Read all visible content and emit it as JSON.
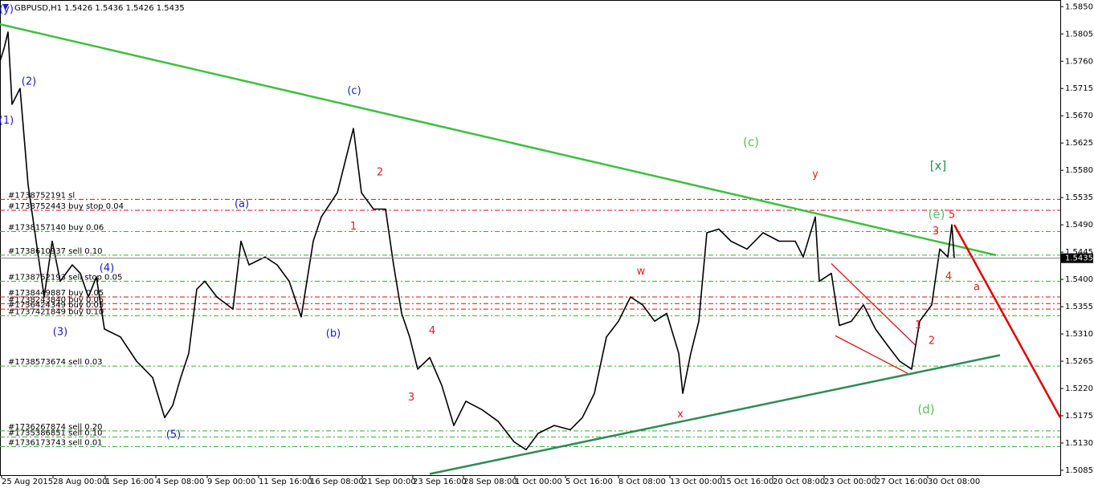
{
  "chart_data": {
    "type": "line",
    "title": "GBPUSD,H1 1.5426 1.5436 1.5426 1.5435",
    "current_price": 1.5435,
    "xlim": [
      0,
      1320
    ],
    "ylim": [
      1.5077,
      1.5861
    ],
    "xticks": [
      {
        "value": 2,
        "label": "25 Aug 2015"
      },
      {
        "value": 66,
        "label": "28 Aug 00:00"
      },
      {
        "value": 131,
        "label": "1 Sep 16:00"
      },
      {
        "value": 194,
        "label": "4 Sep 08:00"
      },
      {
        "value": 258,
        "label": "9 Sep 00:00"
      },
      {
        "value": 322,
        "label": "11 Sep 16:00"
      },
      {
        "value": 386,
        "label": "16 Sep 08:00"
      },
      {
        "value": 451,
        "label": "21 Sep 00:00"
      },
      {
        "value": 514,
        "label": "23 Sep 16:00"
      },
      {
        "value": 577,
        "label": "28 Sep 08:00"
      },
      {
        "value": 641,
        "label": "1 Oct 00:00"
      },
      {
        "value": 704,
        "label": "5 Oct 16:00"
      },
      {
        "value": 770,
        "label": "8 Oct 08:00"
      },
      {
        "value": 834,
        "label": "13 Oct 00:00"
      },
      {
        "value": 898,
        "label": "15 Oct 16:00"
      },
      {
        "value": 962,
        "label": "20 Oct 08:00"
      },
      {
        "value": 1026,
        "label": "23 Oct 00:00"
      },
      {
        "value": 1090,
        "label": "27 Oct 16:00"
      },
      {
        "value": 1155,
        "label": "30 Oct 08:00"
      }
    ],
    "yticks": [
      1.5085,
      {
        "value": 1.513,
        "label": "1.5130"
      },
      1.5175,
      {
        "value": 1.522,
        "label": "1.5220"
      },
      1.5265,
      {
        "value": 1.531,
        "label": "1.5310"
      },
      1.5355,
      {
        "value": 1.54,
        "label": "1.5400"
      },
      1.5445,
      {
        "value": 1.549,
        "label": "1.5490"
      },
      1.5535,
      {
        "value": 1.558,
        "label": "1.5580"
      },
      1.5625,
      {
        "value": 1.567,
        "label": "1.5670"
      },
      1.5715,
      {
        "value": 1.576,
        "label": "1.5760"
      },
      1.5805,
      {
        "value": 1.585,
        "label": "1.5850"
      }
    ],
    "series": [
      {
        "color": "#000000",
        "x": [
          0,
          5,
          10,
          15,
          25,
          35,
          45,
          55,
          65,
          75,
          90,
          100,
          110,
          120,
          130,
          150,
          170,
          190,
          205,
          215,
          225,
          235,
          245,
          255,
          270,
          290,
          300,
          310,
          330,
          345,
          360,
          375,
          390,
          400,
          410,
          420,
          430,
          440,
          450,
          465,
          480,
          490,
          500,
          510,
          520,
          535,
          550,
          565,
          580,
          600,
          620,
          640,
          655,
          670,
          690,
          710,
          725,
          740,
          755,
          770,
          785,
          800,
          815,
          830,
          845,
          850,
          860,
          870,
          880,
          895,
          910,
          930,
          950,
          970,
          990,
          1000,
          1015,
          1020,
          1035,
          1045,
          1060,
          1075,
          1090,
          1105,
          1120,
          1135,
          1145,
          1160,
          1170,
          1180,
          1185,
          1188
        ],
        "values": [
          1.576,
          1.5781,
          1.5808,
          1.5689,
          1.5715,
          1.5556,
          1.5463,
          1.5371,
          1.5463,
          1.5397,
          1.5424,
          1.541,
          1.5371,
          1.5404,
          1.5318,
          1.5305,
          1.5265,
          1.5238,
          1.5172,
          1.5192,
          1.5238,
          1.5278,
          1.5384,
          1.5397,
          1.5371,
          1.5351,
          1.5463,
          1.5424,
          1.5437,
          1.5424,
          1.5397,
          1.5338,
          1.5463,
          1.5503,
          1.5523,
          1.5543,
          1.5596,
          1.5649,
          1.5543,
          1.5516,
          1.5516,
          1.5424,
          1.5344,
          1.5305,
          1.5252,
          1.5271,
          1.5225,
          1.5159,
          1.5199,
          1.5185,
          1.5166,
          1.5132,
          1.5119,
          1.5146,
          1.5159,
          1.5152,
          1.5172,
          1.5212,
          1.5305,
          1.5331,
          1.5371,
          1.5358,
          1.5331,
          1.5344,
          1.5278,
          1.5212,
          1.5278,
          1.5331,
          1.5477,
          1.5483,
          1.5463,
          1.545,
          1.5477,
          1.5463,
          1.5463,
          1.5437,
          1.5503,
          1.5397,
          1.541,
          1.5324,
          1.5331,
          1.5358,
          1.5318,
          1.5291,
          1.5265,
          1.5252,
          1.5331,
          1.5358,
          1.545,
          1.5437,
          1.549,
          1.5435
        ]
      }
    ],
    "orders": [
      {
        "label": "#1738752191 sl",
        "price": 1.5532,
        "color": "#d01010"
      },
      {
        "label": "#1738752443 buy stop 0.04",
        "price": 1.5514,
        "color": "#d01010"
      },
      {
        "label": "#1738157140 buy 0.06",
        "price": 1.5479,
        "color": "#30b030"
      },
      {
        "label": "#1738610937 sell 0.10",
        "price": 1.544,
        "color": "#30b030"
      },
      {
        "label": "#1738752193 sell stop 0.05",
        "price": 1.5397,
        "color": "#30b030"
      },
      {
        "label": "#1738449887 buy 0.05",
        "price": 1.5371,
        "color": "#d01010"
      },
      {
        "label": "#1738243840 buy 0.05",
        "price": 1.536,
        "color": "#d01010"
      },
      {
        "label": "#1736424349 buy 0.05",
        "price": 1.5351,
        "color": "#d01010"
      },
      {
        "label": "#1737421849 buy 0.10",
        "price": 1.534,
        "color": "#30b030"
      },
      {
        "label": "#1738573674 sell 0.03",
        "price": 1.5257,
        "color": "#30b030"
      },
      {
        "label": "#1736267874 sell 0.20",
        "price": 1.515,
        "color": "#30b030"
      },
      {
        "label": "#1735386851 sell 0.10",
        "price": 1.514,
        "color": "#30b030"
      },
      {
        "label": "#1736173743 sell 0.01",
        "price": 1.5124,
        "color": "#30b030"
      }
    ],
    "trendlines": [
      {
        "x": [
          0,
          1240
        ],
        "y": [
          1.5821,
          1.544
        ],
        "color": "#3cc03c"
      },
      {
        "x": [
          535,
          1245
        ],
        "y": [
          1.5079,
          1.5275
        ],
        "color": "#2e8b57"
      },
      {
        "x": [
          1188,
          1320
        ],
        "y": [
          1.549,
          1.5172
        ],
        "color": "#e00000"
      },
      {
        "x": [
          1035,
          1140
        ],
        "y": [
          1.5426,
          1.5291
        ],
        "color": "#e00000"
      },
      {
        "x": [
          1040,
          1130
        ],
        "y": [
          1.5307,
          1.5245
        ],
        "color": "#e00000"
      }
    ],
    "annotations": [
      {
        "text": "(y)",
        "x": 8,
        "y": 1.5845,
        "color": "#1c1cc8"
      },
      {
        "text": "(1)",
        "x": 8,
        "y": 1.5662,
        "color": "#1c1cc8"
      },
      {
        "text": "(2)",
        "x": 36,
        "y": 1.5726,
        "color": "#1c1cc8"
      },
      {
        "text": "(3)",
        "x": 75,
        "y": 1.5313,
        "color": "#1c1cc8"
      },
      {
        "text": "(4)",
        "x": 133,
        "y": 1.5418,
        "color": "#1c1cc8"
      },
      {
        "text": "(5)",
        "x": 216,
        "y": 1.5143,
        "color": "#1c1cc8"
      },
      {
        "text": "(a)",
        "x": 301,
        "y": 1.5524,
        "color": "#1c1cc8"
      },
      {
        "text": "(b)",
        "x": 415,
        "y": 1.531,
        "color": "#1c1cc8"
      },
      {
        "text": "(c)",
        "x": 441,
        "y": 1.5711,
        "color": "#1c1cc8"
      },
      {
        "text": "(c)",
        "x": 935,
        "y": 1.5626,
        "color": "#5cc05c"
      },
      {
        "text": "1",
        "x": 440,
        "y": 1.5487,
        "color": "#e02020"
      },
      {
        "text": "2",
        "x": 473,
        "y": 1.5576,
        "color": "#e02020"
      },
      {
        "text": "3",
        "x": 512,
        "y": 1.5205,
        "color": "#e02020"
      },
      {
        "text": "4",
        "x": 538,
        "y": 1.5315,
        "color": "#e02020"
      },
      {
        "text": "w",
        "x": 798,
        "y": 1.5413,
        "color": "#e02020"
      },
      {
        "text": "x",
        "x": 847,
        "y": 1.5177,
        "color": "#e02020"
      },
      {
        "text": "y",
        "x": 1015,
        "y": 1.5573,
        "color": "#e02020"
      },
      {
        "text": "[x]",
        "x": 1168,
        "y": 1.5587,
        "color": "#2e8b57"
      },
      {
        "text": "(e)",
        "x": 1166,
        "y": 1.5507,
        "color": "#5cc05c"
      },
      {
        "text": "5",
        "x": 1185,
        "y": 1.5506,
        "color": "#e02020"
      },
      {
        "text": "3",
        "x": 1165,
        "y": 1.5479,
        "color": "#e02020"
      },
      {
        "text": "4",
        "x": 1181,
        "y": 1.5404,
        "color": "#e02020"
      },
      {
        "text": "a",
        "x": 1216,
        "y": 1.5387,
        "color": "#e02020"
      },
      {
        "text": "1",
        "x": 1143,
        "y": 1.5324,
        "color": "#e02020"
      },
      {
        "text": "2",
        "x": 1160,
        "y": 1.5298,
        "color": "#e02020"
      },
      {
        "text": "(d)",
        "x": 1153,
        "y": 1.5185,
        "color": "#5cc05c"
      }
    ]
  }
}
